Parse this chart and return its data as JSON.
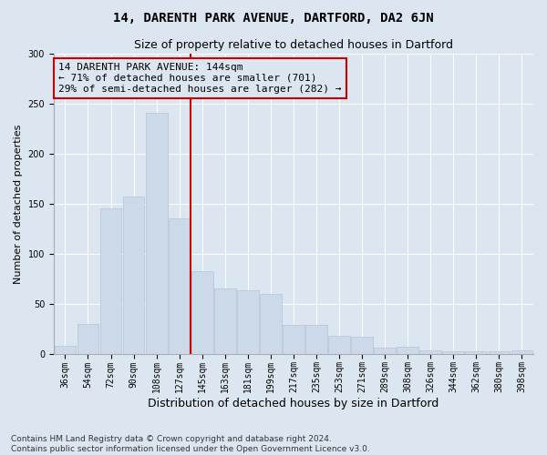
{
  "title": "14, DARENTH PARK AVENUE, DARTFORD, DA2 6JN",
  "subtitle": "Size of property relative to detached houses in Dartford",
  "xlabel": "Distribution of detached houses by size in Dartford",
  "ylabel": "Number of detached properties",
  "categories": [
    "36sqm",
    "54sqm",
    "72sqm",
    "90sqm",
    "108sqm",
    "127sqm",
    "145sqm",
    "163sqm",
    "181sqm",
    "199sqm",
    "217sqm",
    "235sqm",
    "253sqm",
    "271sqm",
    "289sqm",
    "308sqm",
    "326sqm",
    "344sqm",
    "362sqm",
    "380sqm",
    "398sqm"
  ],
  "values": [
    8,
    30,
    145,
    157,
    241,
    135,
    83,
    65,
    63,
    60,
    29,
    29,
    18,
    17,
    6,
    7,
    3,
    2,
    2,
    2,
    3
  ],
  "bar_color": "#ccd9e8",
  "bar_edgecolor": "#b0c4d8",
  "annotation_text": "14 DARENTH PARK AVENUE: 144sqm\n← 71% of detached houses are smaller (701)\n29% of semi-detached houses are larger (282) →",
  "annotation_box_edgecolor": "#cc0000",
  "annotation_fontsize": 8,
  "title_fontsize": 10,
  "subtitle_fontsize": 9,
  "xlabel_fontsize": 9,
  "ylabel_fontsize": 8,
  "tick_fontsize": 7,
  "footnote1": "Contains HM Land Registry data © Crown copyright and database right 2024.",
  "footnote2": "Contains public sector information licensed under the Open Government Licence v3.0.",
  "background_color": "#dce6f0",
  "plot_background": "#dce6f0",
  "ylim": [
    0,
    300
  ],
  "yticks": [
    0,
    50,
    100,
    150,
    200,
    250,
    300
  ],
  "vline_color": "#cc0000",
  "vline_x": 5.5,
  "grid_color": "#ffffff",
  "footnote_fontsize": 6.5
}
